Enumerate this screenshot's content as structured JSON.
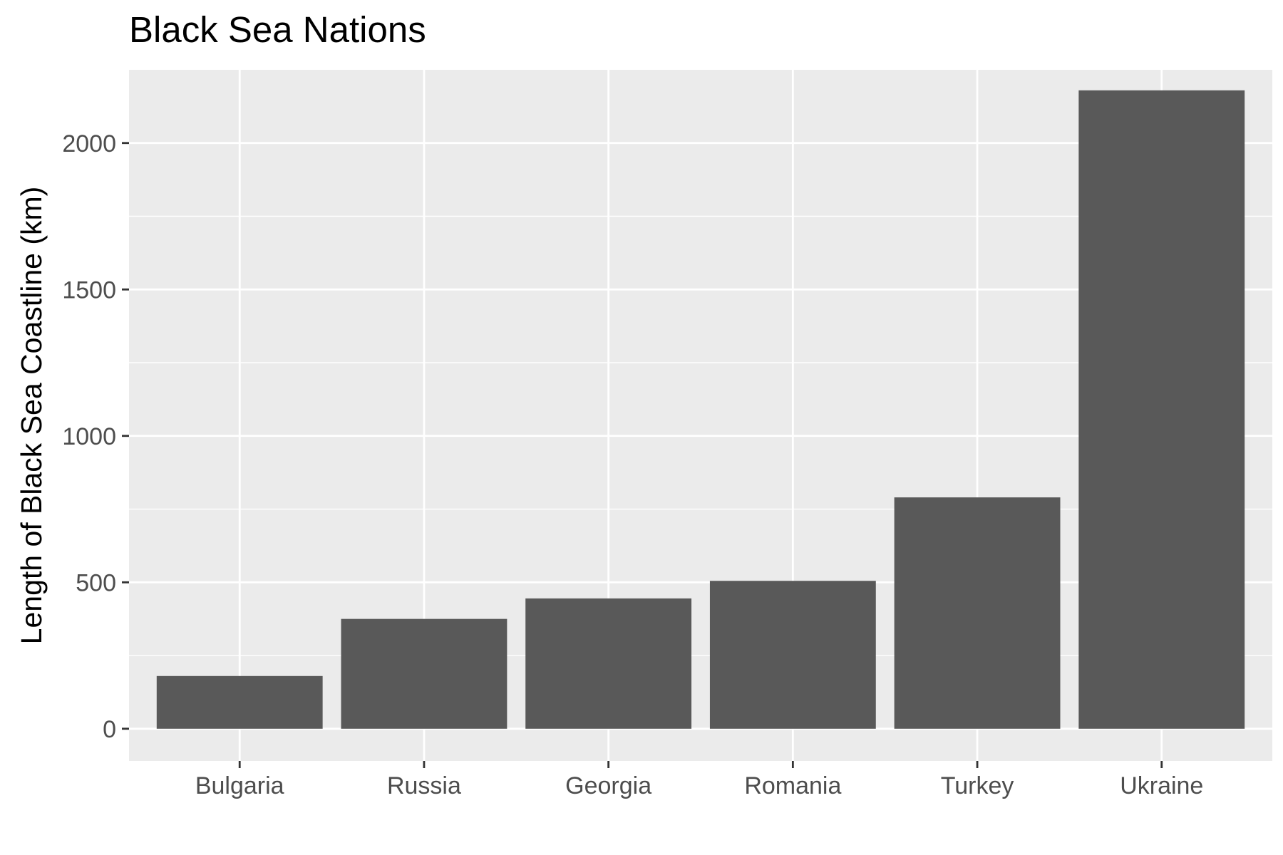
{
  "chart_data": {
    "type": "bar",
    "title": "Black Sea Nations",
    "xlabel": "",
    "ylabel": "Length of Black Sea Coastline (km)",
    "categories": [
      "Bulgaria",
      "Russia",
      "Georgia",
      "Romania",
      "Turkey",
      "Ukraine"
    ],
    "values": [
      180,
      375,
      445,
      505,
      790,
      2180
    ],
    "ylim": [
      -110,
      2250
    ],
    "yticks": [
      0,
      500,
      1000,
      1500,
      2000
    ],
    "ytick_labels": [
      "0",
      "500",
      "1000",
      "1500",
      "2000"
    ],
    "grid": true,
    "legend": "none",
    "colors": {
      "bar": "#595959",
      "panel": "#ebebeb",
      "grid": "#ffffff",
      "tick_text": "#4d4d4d",
      "tick_mark": "#333333"
    }
  }
}
